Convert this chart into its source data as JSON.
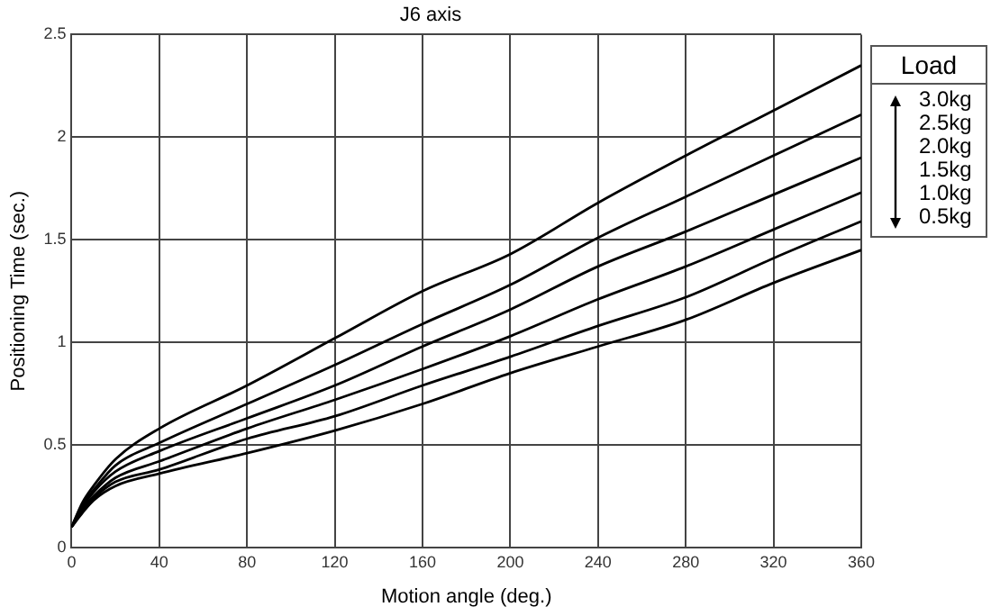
{
  "chart_data": {
    "type": "line",
    "title": "J6 axis",
    "xlabel": "Motion angle (deg.)",
    "ylabel": "Positioning Time (sec.)",
    "legend_title": "Load",
    "legend": "right",
    "grid": true,
    "x": [
      0,
      5,
      10,
      20,
      40,
      80,
      120,
      160,
      200,
      240,
      280,
      320,
      360
    ],
    "series": [
      {
        "name": "3.0kg",
        "color": "#000000",
        "values": [
          0.1,
          0.22,
          0.3,
          0.43,
          0.58,
          0.79,
          1.02,
          1.25,
          1.43,
          1.68,
          1.91,
          2.13,
          2.35
        ]
      },
      {
        "name": "2.5kg",
        "color": "#000000",
        "values": [
          0.1,
          0.21,
          0.28,
          0.4,
          0.51,
          0.7,
          0.89,
          1.09,
          1.28,
          1.51,
          1.71,
          1.91,
          2.11
        ]
      },
      {
        "name": "2.0kg",
        "color": "#000000",
        "values": [
          0.1,
          0.2,
          0.27,
          0.37,
          0.47,
          0.63,
          0.79,
          0.98,
          1.16,
          1.37,
          1.54,
          1.72,
          1.9
        ]
      },
      {
        "name": "1.5kg",
        "color": "#000000",
        "values": [
          0.1,
          0.19,
          0.25,
          0.34,
          0.42,
          0.58,
          0.72,
          0.87,
          1.03,
          1.21,
          1.37,
          1.55,
          1.73
        ]
      },
      {
        "name": "1.0kg",
        "color": "#000000",
        "values": [
          0.1,
          0.18,
          0.24,
          0.32,
          0.38,
          0.53,
          0.64,
          0.79,
          0.93,
          1.08,
          1.22,
          1.41,
          1.59
        ]
      },
      {
        "name": "0.5kg",
        "color": "#000000",
        "values": [
          0.1,
          0.17,
          0.23,
          0.3,
          0.36,
          0.46,
          0.57,
          0.7,
          0.85,
          0.98,
          1.11,
          1.29,
          1.45
        ]
      }
    ],
    "xlim": [
      0,
      360
    ],
    "xticks": [
      0,
      40,
      80,
      120,
      160,
      200,
      240,
      280,
      320,
      360
    ],
    "ylim": [
      0,
      2.5
    ],
    "yticks": [
      0,
      0.5,
      1,
      1.5,
      2,
      2.5
    ]
  }
}
